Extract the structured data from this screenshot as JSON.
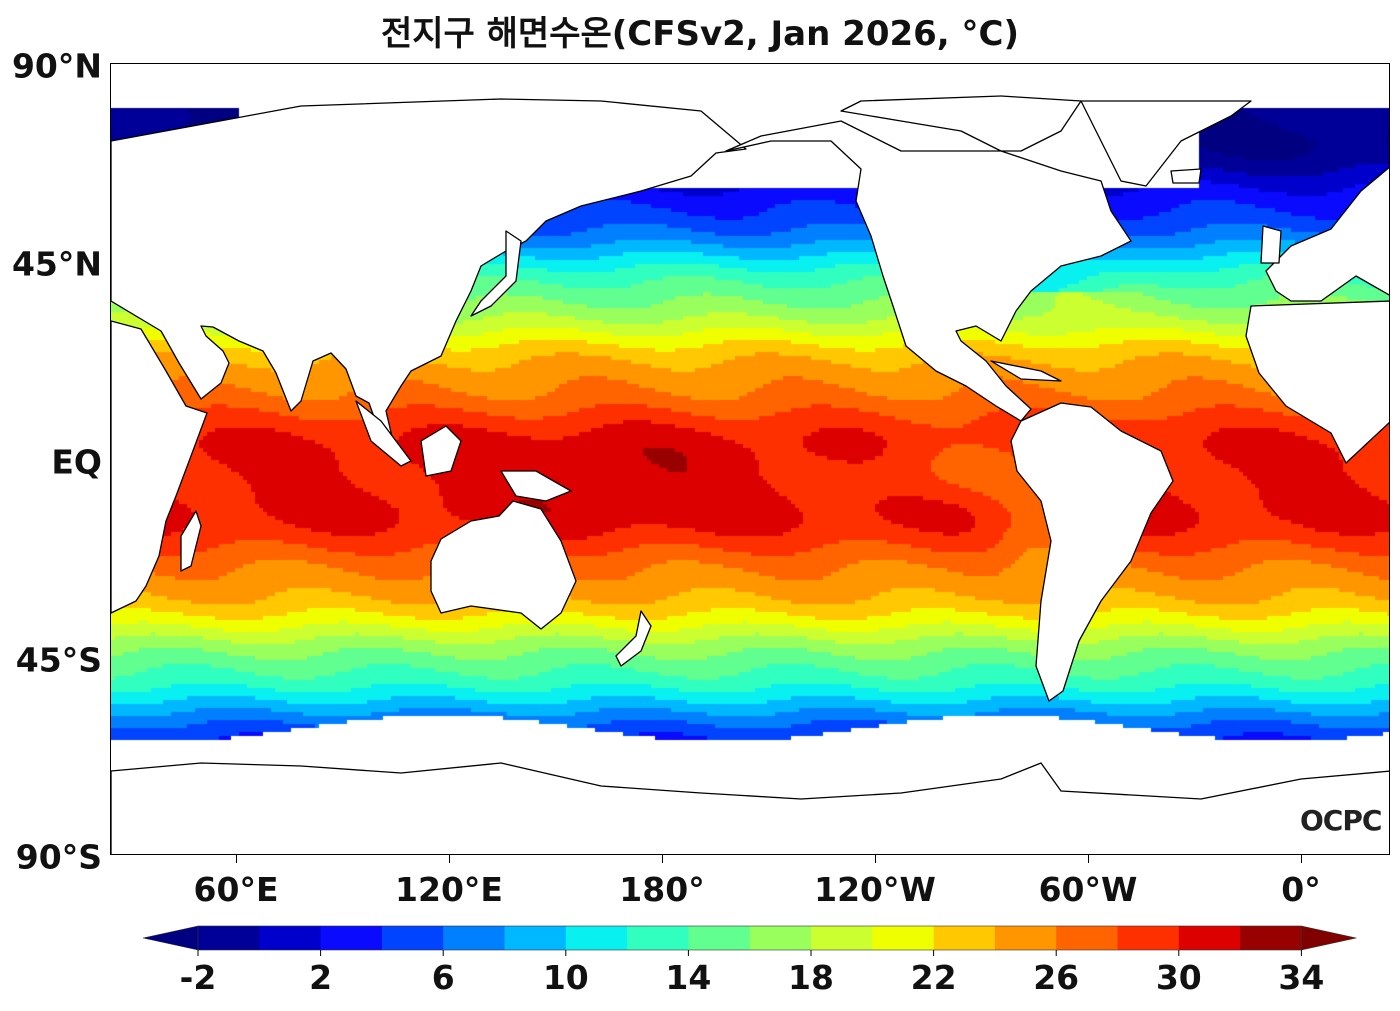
{
  "title": "전지구 해면수온(CFSv2, Jan 2026, °C)",
  "lat_labels": [
    "90°N",
    "45°N",
    "EQ",
    "45°S",
    "90°S"
  ],
  "lon_labels": [
    "60°E",
    "120°E",
    "180°",
    "120°W",
    "60°W",
    "0°"
  ],
  "colorbar": {
    "tick_labels": [
      "-2",
      "2",
      "6",
      "10",
      "14",
      "18",
      "22",
      "26",
      "30",
      "34"
    ],
    "levels_min": -2,
    "levels_max": 34,
    "step": 2,
    "colors": [
      "#000099",
      "#0000cc",
      "#0a0aff",
      "#0044ff",
      "#0080ff",
      "#00b8ff",
      "#08f0f0",
      "#30ffc0",
      "#60ff90",
      "#99ff5c",
      "#ccff30",
      "#f0ff00",
      "#ffc800",
      "#ff9600",
      "#ff6400",
      "#ff3000",
      "#dd0000",
      "#990000"
    ],
    "under_color": "#000080",
    "over_color": "#800000"
  },
  "logo": "OCPC"
}
